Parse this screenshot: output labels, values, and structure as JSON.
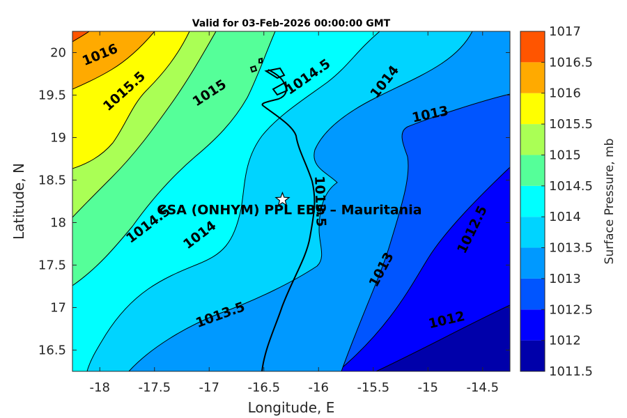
{
  "chart_data": {
    "type": "contour",
    "title": "Valid for 03-Feb-2026 00:00:00 GMT",
    "xlabel": "Longitude, E",
    "ylabel": "Latitude, N",
    "xlim": [
      -18.25,
      -14.25
    ],
    "ylim": [
      16.25,
      20.25
    ],
    "xticks": [
      -18,
      -17.5,
      -17,
      -16.5,
      -16,
      -15.5,
      -15,
      -14.5
    ],
    "xtick_labels": [
      "-18",
      "-17.5",
      "-17",
      "-16.5",
      "-16",
      "-15.5",
      "-15",
      "-14.5"
    ],
    "yticks": [
      16.5,
      17,
      17.5,
      18,
      18.5,
      19,
      19.5,
      20
    ],
    "ytick_labels": [
      "16.5",
      "17",
      "17.5",
      "18",
      "18.5",
      "19",
      "19.5",
      "20"
    ],
    "colorbar": {
      "label": "Surface Pressure, mb",
      "levels": [
        1011.5,
        1012,
        1012.5,
        1013,
        1013.5,
        1014,
        1014.5,
        1015,
        1015.5,
        1016,
        1016.5,
        1017
      ],
      "tick_labels": [
        "1011.5",
        "1012",
        "1012.5",
        "1013",
        "1013.5",
        "1014",
        "1014.5",
        "1015",
        "1015.5",
        "1016",
        "1016.5",
        "1017"
      ],
      "colors": [
        "#0000aa",
        "#0000ff",
        "#0055ff",
        "#0099ff",
        "#00d4ff",
        "#00ffff",
        "#55ff99",
        "#aaff55",
        "#ffff00",
        "#ffaa00",
        "#ff5500",
        "#ff0000",
        "#aa0000"
      ]
    },
    "contour_labels": [
      {
        "text": "1016",
        "lon": -18.0,
        "lat": 19.98,
        "angle": -22
      },
      {
        "text": "1015.5",
        "lon": -17.78,
        "lat": 19.55,
        "angle": -42
      },
      {
        "text": "1015",
        "lon": -17.0,
        "lat": 19.53,
        "angle": -33
      },
      {
        "text": "1014.5",
        "lon": -16.1,
        "lat": 19.72,
        "angle": -35
      },
      {
        "text": "1014",
        "lon": -15.4,
        "lat": 19.66,
        "angle": -52
      },
      {
        "text": "1013",
        "lon": -14.98,
        "lat": 19.28,
        "angle": -12
      },
      {
        "text": "1013.5",
        "lon": -15.98,
        "lat": 18.25,
        "angle": 88
      },
      {
        "text": "1014.5",
        "lon": -17.56,
        "lat": 17.98,
        "angle": -37
      },
      {
        "text": "1014",
        "lon": -17.09,
        "lat": 17.86,
        "angle": -37
      },
      {
        "text": "1012.5",
        "lon": -14.6,
        "lat": 17.92,
        "angle": -64
      },
      {
        "text": "1013",
        "lon": -15.43,
        "lat": 17.45,
        "angle": -62
      },
      {
        "text": "1013.5",
        "lon": -16.9,
        "lat": 16.92,
        "angle": -20
      },
      {
        "text": "1012",
        "lon": -14.83,
        "lat": 16.86,
        "angle": -13
      }
    ],
    "station": {
      "name": "CSA (ONHYM) PPL EBS – Mauritania",
      "lon": -16.33,
      "lat": 18.27
    }
  }
}
